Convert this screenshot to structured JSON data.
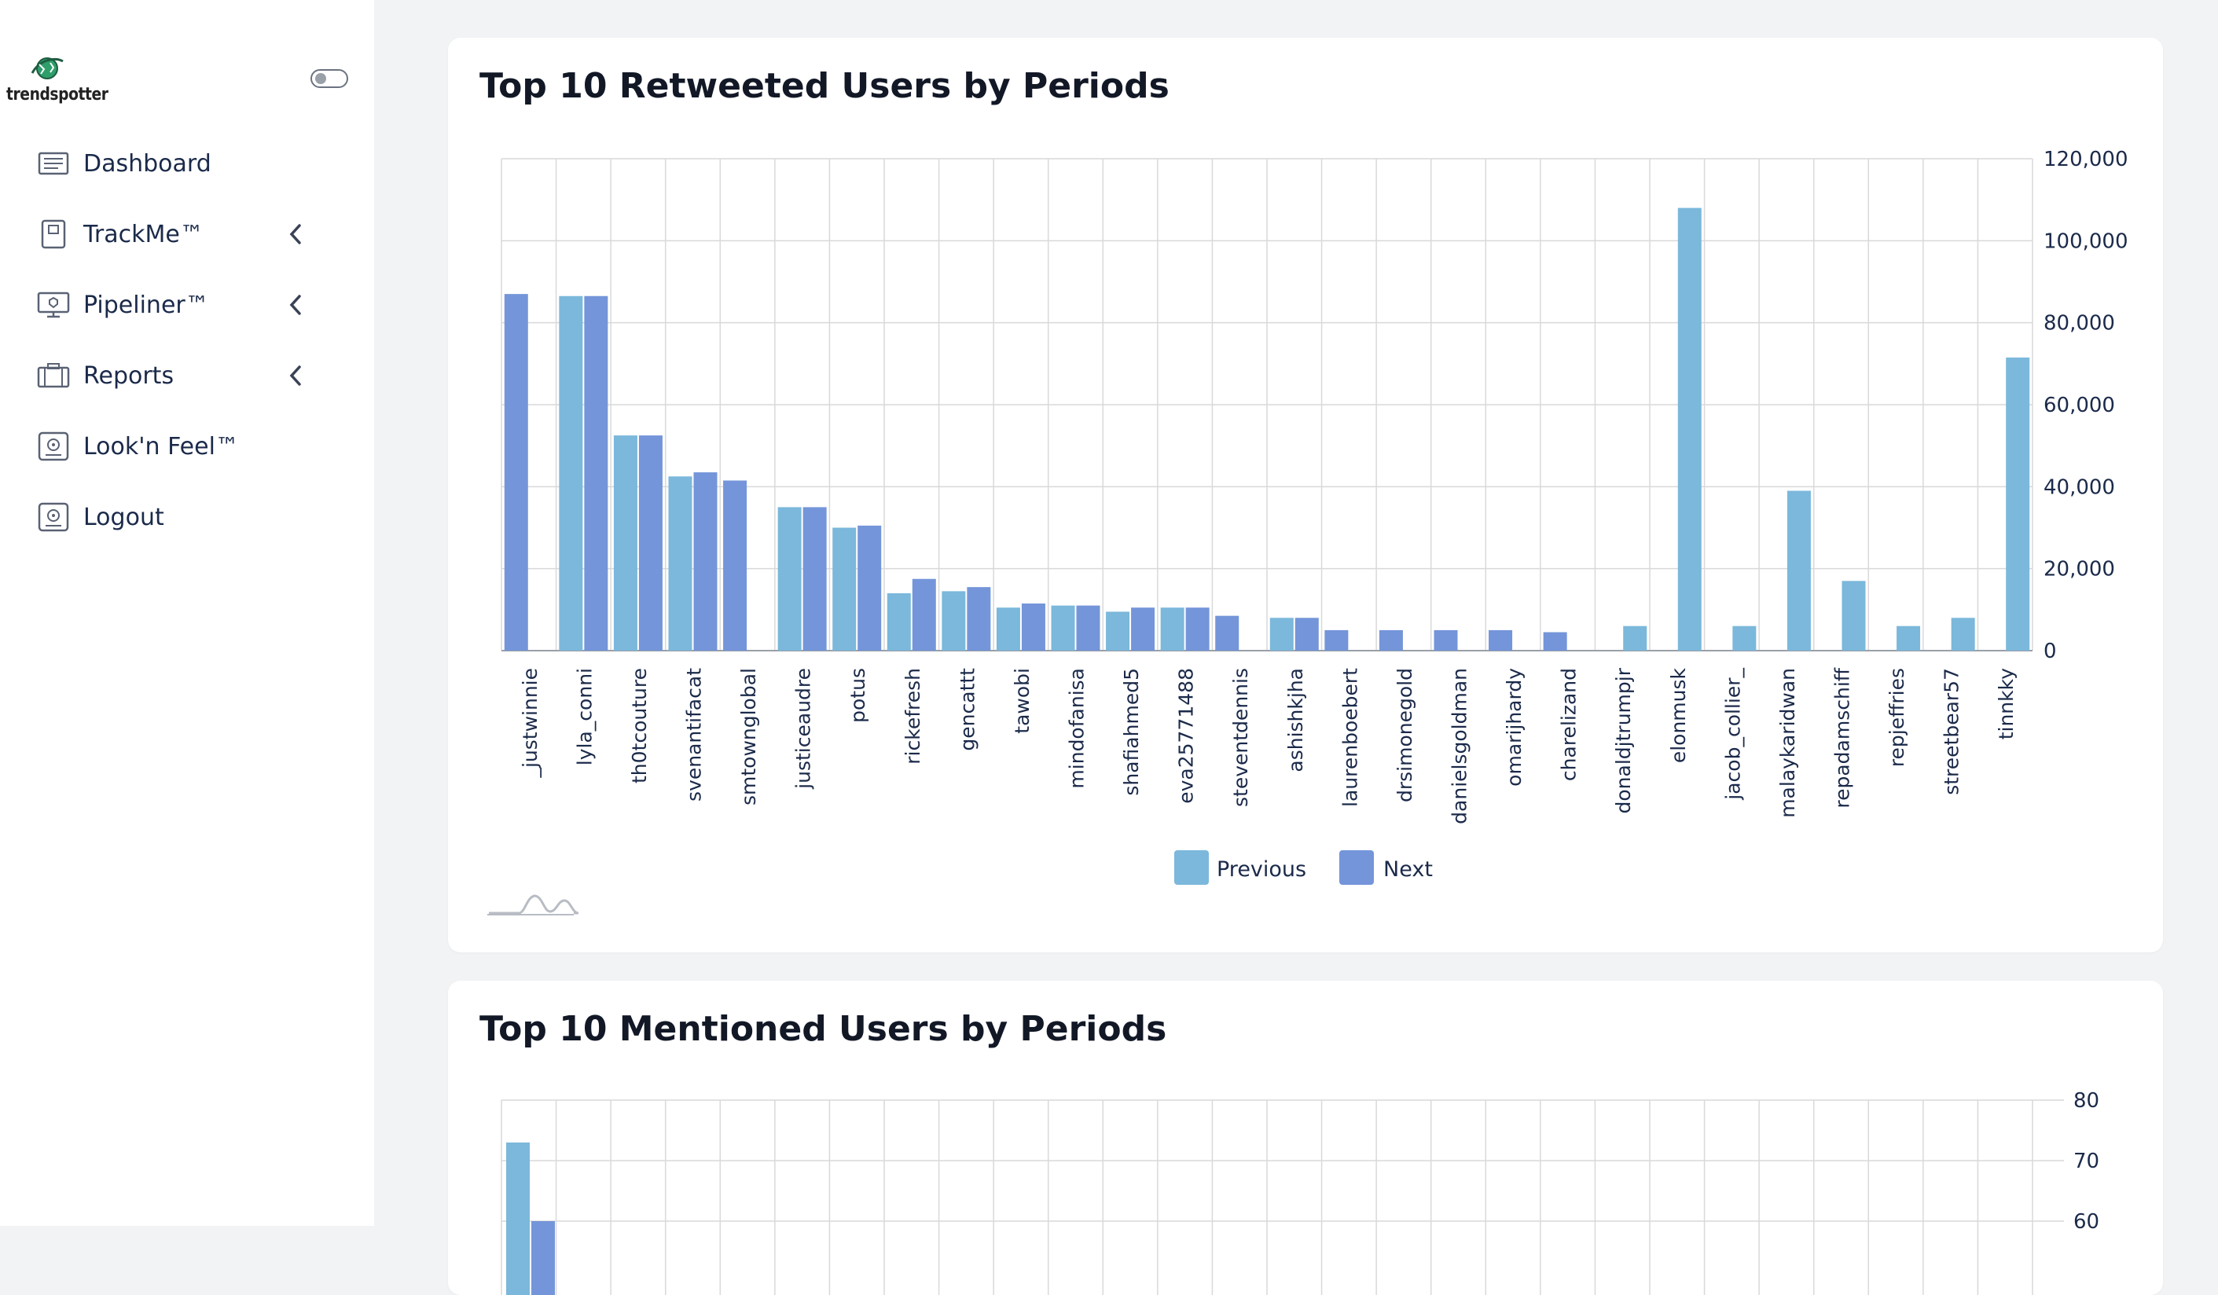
{
  "app": {
    "logo_text": "trendspotter"
  },
  "sidebar": {
    "items": [
      {
        "label": "Dashboard",
        "icon": "newspaper-icon",
        "has_chevron": false
      },
      {
        "label": "TrackMe™",
        "icon": "book-icon",
        "has_chevron": true
      },
      {
        "label": "Pipeliner™",
        "icon": "monitor-icon",
        "has_chevron": true
      },
      {
        "label": "Reports",
        "icon": "briefcase-icon",
        "has_chevron": true
      },
      {
        "label": "Look'n Feel™",
        "icon": "safe-icon",
        "has_chevron": false
      },
      {
        "label": "Logout",
        "icon": "safe-icon",
        "has_chevron": false
      }
    ]
  },
  "cards": {
    "retweeted_title": "Top 10 Retweeted Users by Periods",
    "mentioned_title": "Top 10 Mentioned Users by Periods"
  },
  "colors": {
    "previous": "#7bb8db",
    "next": "#7495d9",
    "grid": "#d9d9d9"
  },
  "chart_data": [
    {
      "type": "bar",
      "title": "Top 10 Retweeted Users by Periods",
      "categories": [
        "_justwinnie",
        "lyla_conni",
        "th0tcouture",
        "svenantifacat",
        "smtownglobal",
        "justiceaudre",
        "potus",
        "rickefresh",
        "gencattt",
        "tawobi",
        "mindofanisa",
        "shafiahmed5",
        "eva25771488",
        "steventdennis",
        "ashishkjha",
        "laurenboebert",
        "drsimonegold",
        "danielsgoldman",
        "omarijhardy",
        "charelizand",
        "donaldjtrumpjr",
        "elonmusk",
        "jacob_collier_",
        "malaykaridwan",
        "repadamschiff",
        "repjeffries",
        "streetbear57",
        "tinnkky"
      ],
      "series": [
        {
          "name": "Previous",
          "values": [
            null,
            86500,
            52500,
            42500,
            null,
            35000,
            30000,
            14000,
            14500,
            10500,
            11000,
            9500,
            10500,
            null,
            8000,
            null,
            null,
            null,
            null,
            null,
            6000,
            108000,
            6000,
            39000,
            17000,
            6000,
            8000,
            71500
          ]
        },
        {
          "name": "Next",
          "values": [
            87000,
            86500,
            52500,
            43500,
            41500,
            35000,
            30500,
            17500,
            15500,
            11500,
            11000,
            10500,
            10500,
            8500,
            8000,
            5000,
            5000,
            5000,
            5000,
            4500,
            null,
            null,
            null,
            null,
            null,
            null,
            null,
            null
          ]
        }
      ],
      "yticks": [
        "0",
        "20,000",
        "40,000",
        "60,000",
        "80,000",
        "100,000",
        "120,000"
      ],
      "ylim": [
        0,
        120000
      ],
      "legend": "bottom-center",
      "grid": true,
      "y_axis_side": "right"
    },
    {
      "type": "bar",
      "title": "Top 10 Mentioned Users by Periods",
      "visible_yticks": [
        "80",
        "70",
        "60"
      ],
      "ylim_top": 80,
      "series": [
        {
          "name": "Previous",
          "values": [
            73
          ]
        },
        {
          "name": "Next",
          "values": [
            60
          ]
        }
      ],
      "grid": true,
      "y_axis_side": "right"
    }
  ],
  "legend": {
    "previous_label": "Previous",
    "next_label": "Next"
  }
}
